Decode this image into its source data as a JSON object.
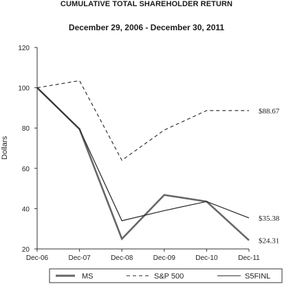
{
  "chart_data": {
    "type": "line",
    "title": "CUMULATIVE TOTAL SHAREHOLDER RETURN",
    "subtitle": "December 29, 2006 - December 30, 2011",
    "ylabel": "Dollars",
    "xlabel": "",
    "ylim": [
      20,
      120
    ],
    "yticks": [
      "20",
      "40",
      "60",
      "80",
      "100",
      "120"
    ],
    "categories": [
      "Dec-06",
      "Dec-07",
      "Dec-08",
      "Dec-09",
      "Dec-10",
      "Dec-11"
    ],
    "grid": false,
    "legend_position": "bottom",
    "series": [
      {
        "name": "MS",
        "style": "solid-thick",
        "color": "#666666",
        "values": [
          100,
          79.5,
          25,
          46.8,
          43.5,
          24.31
        ],
        "end_label": "$24.31"
      },
      {
        "name": "S&P 500",
        "style": "dashed",
        "color": "#222222",
        "values": [
          100,
          103.5,
          64,
          79,
          88.67,
          88.67
        ],
        "end_label": "$88.67"
      },
      {
        "name": "S5FINL",
        "style": "solid-thin",
        "color": "#222222",
        "values": [
          100,
          79.5,
          34,
          39,
          43.5,
          35.38
        ],
        "end_label": "$35.38"
      }
    ]
  }
}
